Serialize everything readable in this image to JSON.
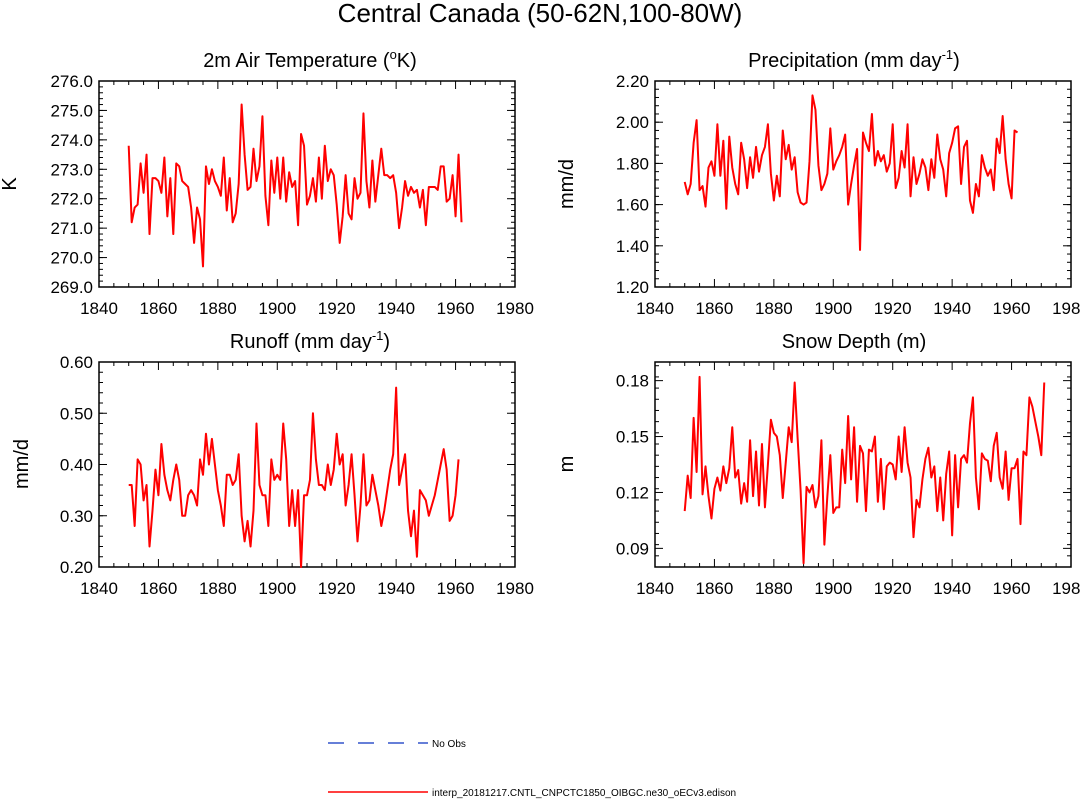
{
  "figure": {
    "title": "Central Canada (50-62N,100-80W)"
  },
  "legend": {
    "obs_label": "No Obs",
    "obs_color": "#3355cc",
    "model_label": "interp_20181217.CNTL_CNPCTC1850_OIBGC.ne30_oECv3.edison",
    "model_color": "#ff0000"
  },
  "chart_data": [
    {
      "type": "line",
      "title": "2m Air Temperature (",
      "title_sup": "o",
      "title_tail": "K)",
      "ylabel": "K",
      "xlim": [
        1840,
        1980
      ],
      "ylim": [
        269,
        276
      ],
      "xticks": [
        1840,
        1860,
        1880,
        1900,
        1920,
        1940,
        1960,
        1980
      ],
      "xtick_labels": [
        "1840",
        "1860",
        "1880",
        "1900",
        "1920",
        "1940",
        "1960",
        "1980"
      ],
      "yticks": [
        269,
        270,
        271,
        272,
        273,
        274,
        275,
        276
      ],
      "ytick_labels": [
        "269.0",
        "270.0",
        "271.0",
        "272.0",
        "273.0",
        "274.0",
        "275.0",
        "276.0"
      ],
      "y_minor_step": 0.2,
      "x_start": 1850,
      "series": [
        {
          "name": "interp_20181217.CNTL_CNPCTC1850_OIBGC.ne30_oECv3.edison",
          "color": "#ff0000",
          "values": [
            273.8,
            271.2,
            271.7,
            271.8,
            273.2,
            272.2,
            273.5,
            270.8,
            272.7,
            272.7,
            272.6,
            272.2,
            273.4,
            271.4,
            272.7,
            270.8,
            273.2,
            273.1,
            272.6,
            272.5,
            272.4,
            271.7,
            270.5,
            271.7,
            271.3,
            269.7,
            273.1,
            272.5,
            273.0,
            272.6,
            272.4,
            272.1,
            273.4,
            271.6,
            272.7,
            271.2,
            271.5,
            272.5,
            275.2,
            273.5,
            272.3,
            272.4,
            273.7,
            272.6,
            273.1,
            274.8,
            272.1,
            271.1,
            273.3,
            272.2,
            273.4,
            272.0,
            273.4,
            271.9,
            272.9,
            272.4,
            272.6,
            271.1,
            274.2,
            273.8,
            271.8,
            272.1,
            272.7,
            271.9,
            273.4,
            272.0,
            273.8,
            272.6,
            273.0,
            272.8,
            271.8,
            270.5,
            271.4,
            272.8,
            271.5,
            271.3,
            272.7,
            272.0,
            272.2,
            274.9,
            272.6,
            271.7,
            273.3,
            271.9,
            272.8,
            273.7,
            272.8,
            272.8,
            272.7,
            272.8,
            272.2,
            271.0,
            271.7,
            272.6,
            272.1,
            272.4,
            272.2,
            272.3,
            271.7,
            272.3,
            271.1,
            272.4,
            272.4,
            272.4,
            272.3,
            273.1,
            273.1,
            271.9,
            272.0,
            272.8,
            271.4,
            273.5,
            271.2
          ]
        }
      ]
    },
    {
      "type": "line",
      "title": "Precipitation (mm day",
      "title_sup": "-1",
      "title_tail": ")",
      "ylabel": "mm/d",
      "xlim": [
        1840,
        1980
      ],
      "ylim": [
        1.2,
        2.2
      ],
      "xticks": [
        1840,
        1860,
        1880,
        1900,
        1920,
        1940,
        1960,
        1980
      ],
      "xtick_labels": [
        "1840",
        "1860",
        "1880",
        "1900",
        "1920",
        "1940",
        "1960",
        "1980"
      ],
      "yticks": [
        1.2,
        1.4,
        1.6,
        1.8,
        2.0,
        2.2
      ],
      "ytick_labels": [
        "1.20",
        "1.40",
        "1.60",
        "1.80",
        "2.00",
        "2.20"
      ],
      "y_minor_step": 0.04,
      "x_start": 1850,
      "series": [
        {
          "name": "interp_20181217.CNTL_CNPCTC1850_OIBGC.ne30_oECv3.edison",
          "color": "#ff0000",
          "values": [
            1.71,
            1.65,
            1.7,
            1.9,
            2.01,
            1.67,
            1.69,
            1.59,
            1.78,
            1.81,
            1.74,
            1.99,
            1.74,
            1.91,
            1.58,
            1.93,
            1.78,
            1.7,
            1.65,
            1.9,
            1.82,
            1.68,
            1.83,
            1.73,
            1.88,
            1.76,
            1.84,
            1.88,
            1.99,
            1.75,
            1.62,
            1.74,
            1.64,
            1.96,
            1.82,
            1.89,
            1.77,
            1.83,
            1.66,
            1.61,
            1.6,
            1.61,
            1.81,
            2.13,
            2.06,
            1.79,
            1.67,
            1.7,
            1.75,
            1.97,
            1.77,
            1.81,
            1.84,
            1.88,
            1.94,
            1.6,
            1.7,
            1.79,
            1.87,
            1.38,
            1.95,
            1.9,
            1.86,
            2.04,
            1.79,
            1.86,
            1.81,
            1.84,
            1.76,
            1.8,
            1.99,
            1.68,
            1.73,
            1.86,
            1.78,
            1.99,
            1.64,
            1.83,
            1.7,
            1.75,
            1.82,
            1.78,
            1.67,
            1.82,
            1.73,
            1.94,
            1.82,
            1.77,
            1.64,
            1.85,
            1.9,
            1.97,
            1.98,
            1.7,
            1.88,
            1.91,
            1.62,
            1.56,
            1.7,
            1.64,
            1.84,
            1.78,
            1.74,
            1.77,
            1.67,
            1.92,
            1.85,
            2.03,
            1.82,
            1.7,
            1.63,
            1.96,
            1.95
          ]
        }
      ]
    },
    {
      "type": "line",
      "title": "Runoff (mm day",
      "title_sup": "-1",
      "title_tail": ")",
      "ylabel": "mm/d",
      "xlim": [
        1840,
        1980
      ],
      "ylim": [
        0.2,
        0.6
      ],
      "xticks": [
        1840,
        1860,
        1880,
        1900,
        1920,
        1940,
        1960,
        1980
      ],
      "xtick_labels": [
        "1840",
        "1860",
        "1880",
        "1900",
        "1920",
        "1940",
        "1960",
        "1980"
      ],
      "yticks": [
        0.2,
        0.3,
        0.4,
        0.5,
        0.6
      ],
      "ytick_labels": [
        "0.20",
        "0.30",
        "0.40",
        "0.50",
        "0.60"
      ],
      "y_minor_step": 0.02,
      "x_start": 1850,
      "series": [
        {
          "name": "interp_20181217.CNTL_CNPCTC1850_OIBGC.ne30_oECv3.edison",
          "color": "#ff0000",
          "values": [
            0.36,
            0.36,
            0.28,
            0.41,
            0.4,
            0.33,
            0.36,
            0.24,
            0.31,
            0.39,
            0.34,
            0.44,
            0.38,
            0.35,
            0.33,
            0.37,
            0.4,
            0.37,
            0.3,
            0.3,
            0.34,
            0.35,
            0.34,
            0.32,
            0.41,
            0.38,
            0.46,
            0.4,
            0.45,
            0.4,
            0.35,
            0.32,
            0.28,
            0.38,
            0.38,
            0.36,
            0.37,
            0.42,
            0.3,
            0.25,
            0.29,
            0.24,
            0.31,
            0.48,
            0.36,
            0.34,
            0.34,
            0.28,
            0.41,
            0.37,
            0.38,
            0.37,
            0.48,
            0.41,
            0.28,
            0.35,
            0.28,
            0.35,
            0.2,
            0.34,
            0.34,
            0.37,
            0.5,
            0.41,
            0.36,
            0.36,
            0.35,
            0.4,
            0.36,
            0.39,
            0.46,
            0.4,
            0.42,
            0.32,
            0.36,
            0.42,
            0.34,
            0.25,
            0.32,
            0.42,
            0.32,
            0.33,
            0.38,
            0.35,
            0.32,
            0.28,
            0.31,
            0.35,
            0.39,
            0.42,
            0.55,
            0.36,
            0.39,
            0.42,
            0.31,
            0.26,
            0.31,
            0.22,
            0.35,
            0.34,
            0.33,
            0.3,
            0.32,
            0.34,
            0.37,
            0.4,
            0.43,
            0.39,
            0.29,
            0.3,
            0.34,
            0.41
          ]
        }
      ]
    },
    {
      "type": "line",
      "title": "Snow Depth (m)",
      "title_sup": "",
      "title_tail": "",
      "ylabel": "m",
      "xlim": [
        1840,
        1980
      ],
      "ylim": [
        0.08,
        0.19
      ],
      "xticks": [
        1840,
        1860,
        1880,
        1900,
        1920,
        1940,
        1960,
        1980
      ],
      "xtick_labels": [
        "1840",
        "1860",
        "1880",
        "1900",
        "1920",
        "1940",
        "1960",
        "1980"
      ],
      "yticks": [
        0.09,
        0.12,
        0.15,
        0.18
      ],
      "ytick_labels": [
        "0.09",
        "0.12",
        "0.15",
        "0.18"
      ],
      "y_minor_step": 0.006,
      "x_start": 1850,
      "series": [
        {
          "name": "interp_20181217.CNTL_CNPCTC1850_OIBGC.ne30_oECv3.edison",
          "color": "#ff0000",
          "values": [
            0.11,
            0.129,
            0.117,
            0.16,
            0.131,
            0.182,
            0.119,
            0.134,
            0.118,
            0.106,
            0.122,
            0.128,
            0.121,
            0.134,
            0.125,
            0.133,
            0.155,
            0.128,
            0.132,
            0.114,
            0.125,
            0.115,
            0.148,
            0.118,
            0.142,
            0.113,
            0.146,
            0.112,
            0.135,
            0.159,
            0.152,
            0.15,
            0.14,
            0.117,
            0.136,
            0.155,
            0.147,
            0.179,
            0.149,
            0.121,
            0.082,
            0.123,
            0.12,
            0.124,
            0.112,
            0.118,
            0.148,
            0.092,
            0.118,
            0.14,
            0.109,
            0.112,
            0.112,
            0.143,
            0.125,
            0.161,
            0.127,
            0.155,
            0.115,
            0.145,
            0.141,
            0.11,
            0.143,
            0.142,
            0.15,
            0.115,
            0.138,
            0.111,
            0.134,
            0.136,
            0.135,
            0.127,
            0.15,
            0.131,
            0.155,
            0.136,
            0.128,
            0.096,
            0.116,
            0.112,
            0.127,
            0.138,
            0.144,
            0.128,
            0.134,
            0.11,
            0.128,
            0.105,
            0.13,
            0.142,
            0.097,
            0.14,
            0.112,
            0.138,
            0.14,
            0.136,
            0.157,
            0.171,
            0.128,
            0.111,
            0.141,
            0.138,
            0.137,
            0.126,
            0.145,
            0.152,
            0.128,
            0.122,
            0.142,
            0.116,
            0.133,
            0.133,
            0.138,
            0.103,
            0.142,
            0.14,
            0.171,
            0.166,
            0.158,
            0.15,
            0.14,
            0.179
          ]
        }
      ]
    }
  ]
}
